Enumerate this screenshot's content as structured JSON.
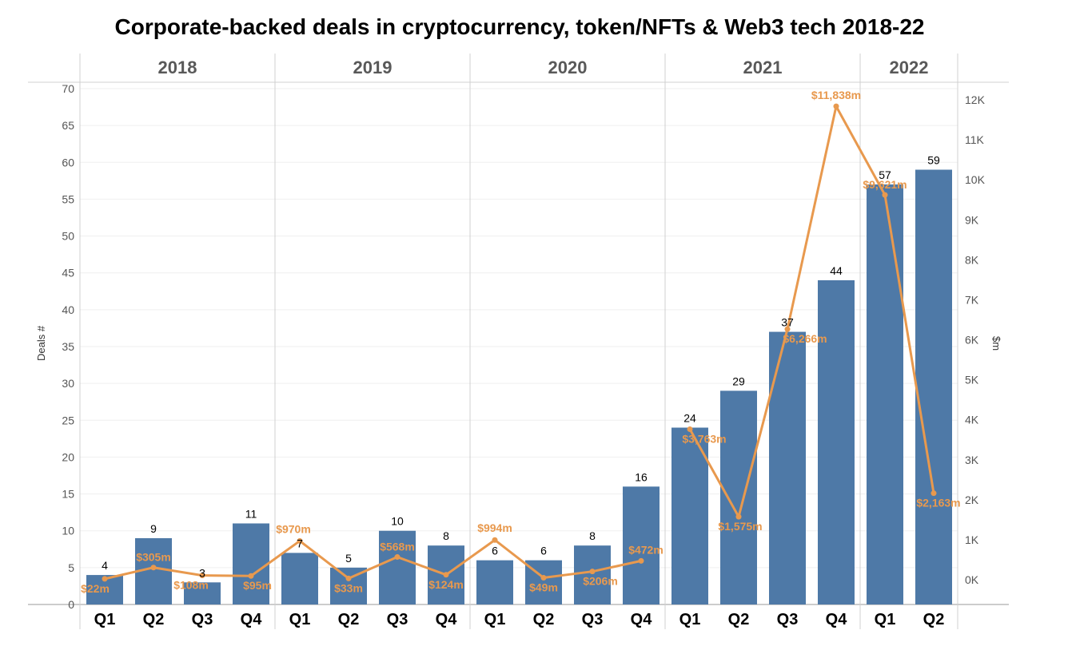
{
  "colors": {
    "bar": "#4E79A7",
    "line": "#E8994E",
    "grid": "#EFEFEF",
    "divider": "#D0D0D0"
  },
  "chart_data": {
    "type": "bar",
    "title": "Corporate-backed deals in cryptocurrency, token/NFTs & Web3 tech 2018-22",
    "ylabel": "Deals #",
    "y2label": "$m",
    "ylim": [
      0,
      70
    ],
    "y2lim": [
      0,
      12000
    ],
    "yticks": [
      "0",
      "5",
      "10",
      "15",
      "20",
      "25",
      "30",
      "35",
      "40",
      "45",
      "50",
      "55",
      "60",
      "65",
      "70"
    ],
    "y2ticks": [
      "0K",
      "1K",
      "2K",
      "3K",
      "4K",
      "5K",
      "6K",
      "7K",
      "8K",
      "9K",
      "10K",
      "11K",
      "12K"
    ],
    "grid": true,
    "years": [
      {
        "label": "2018",
        "quarters": [
          "Q1",
          "Q2",
          "Q3",
          "Q4"
        ]
      },
      {
        "label": "2019",
        "quarters": [
          "Q1",
          "Q2",
          "Q3",
          "Q4"
        ]
      },
      {
        "label": "2020",
        "quarters": [
          "Q1",
          "Q2",
          "Q3",
          "Q4"
        ]
      },
      {
        "label": "2021",
        "quarters": [
          "Q1",
          "Q2",
          "Q3",
          "Q4"
        ]
      },
      {
        "label": "2022",
        "quarters": [
          "Q1",
          "Q2"
        ]
      }
    ],
    "series": [
      {
        "axis": "left",
        "type": "bar",
        "values": [
          4,
          9,
          3,
          11,
          7,
          5,
          10,
          8,
          6,
          6,
          8,
          16,
          24,
          29,
          37,
          44,
          57,
          59
        ],
        "labels": [
          "4",
          "9",
          "3",
          "11",
          "7",
          "5",
          "10",
          "8",
          "6",
          "6",
          "8",
          "16",
          "24",
          "29",
          "37",
          "44",
          "57",
          "59"
        ]
      },
      {
        "axis": "right",
        "type": "line",
        "values": [
          22,
          305,
          108,
          95,
          970,
          33,
          568,
          124,
          994,
          49,
          206,
          472,
          3763,
          1575,
          6266,
          11838,
          9621,
          2163
        ],
        "labels": [
          "$22m",
          "$305m",
          "$108m",
          "$95m",
          "$970m",
          "$33m",
          "$568m",
          "$124m",
          "$994m",
          "$49m",
          "$206m",
          "$472m",
          "$3,763m",
          "$1,575m",
          "$6,266m",
          "$11,838m",
          "$9,621m",
          "$2,163m"
        ],
        "breaks_after": [
          11
        ]
      }
    ]
  }
}
